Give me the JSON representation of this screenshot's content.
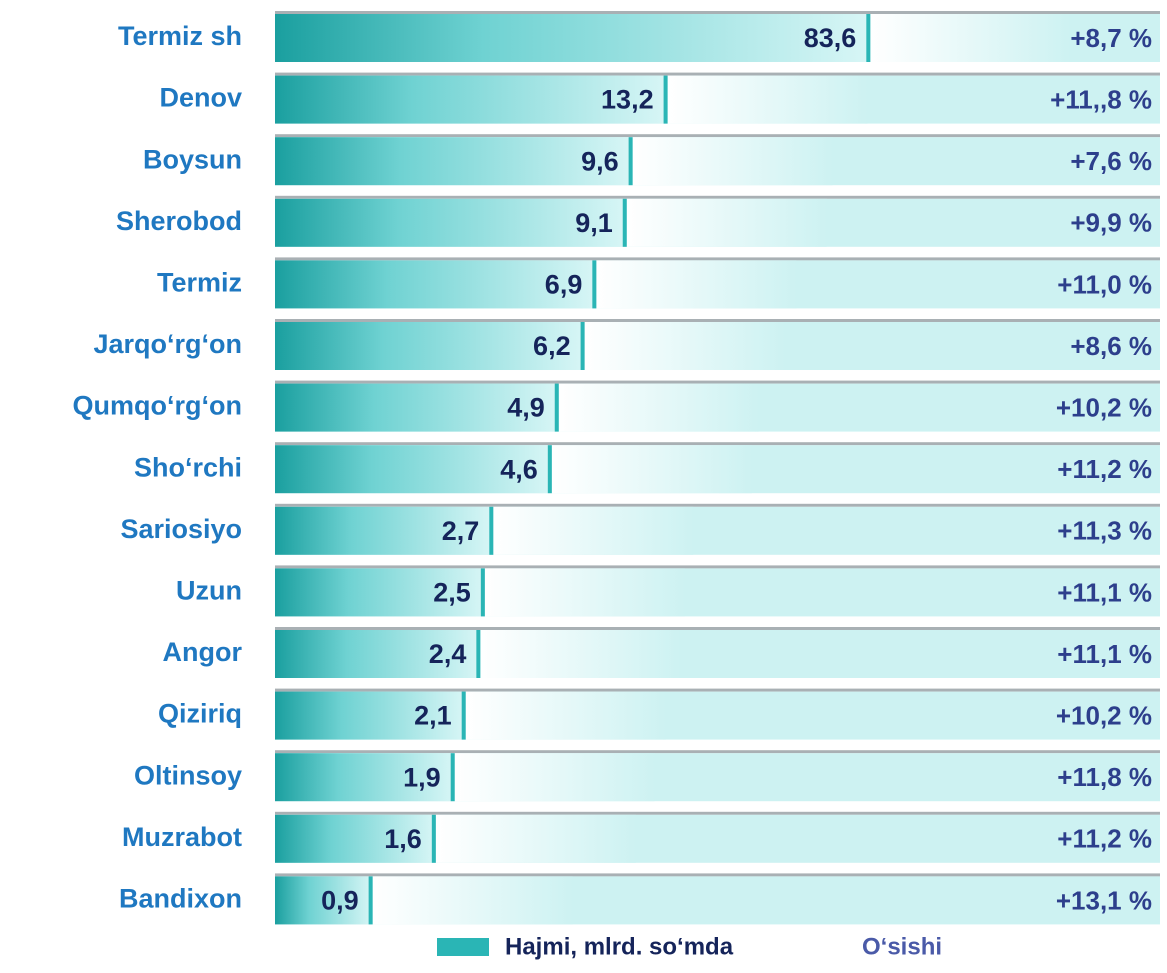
{
  "chart_data": {
    "type": "bar",
    "orientation": "horizontal",
    "log_scale": true,
    "xlim": [
      0.37,
      100
    ],
    "categories": [
      "Termiz sh",
      "Denov",
      "Boysun",
      "Sherobod",
      "Termiz",
      "Jarqo‘rg‘on",
      "Qumqo‘rg‘on",
      "Sho‘rchi",
      "Sariosiyo",
      "Uzun",
      "Angor",
      "Qiziriq",
      "Oltinsoy",
      "Muzrabot",
      "Bandixon"
    ],
    "series": [
      {
        "name": "Hajmi, mlrd. so‘mda",
        "color": "#2ab5b5",
        "values": [
          83.6,
          13.2,
          9.6,
          9.1,
          6.9,
          6.2,
          4.9,
          4.6,
          2.7,
          2.5,
          2.4,
          2.1,
          1.9,
          1.6,
          0.9
        ],
        "value_labels": [
          "83,6",
          "13,2",
          "9,6",
          "9,1",
          "6,9",
          "6,2",
          "4,9",
          "4,6",
          "2,7",
          "2,5",
          "2,4",
          "2,1",
          "1,9",
          "1,6",
          "0,9"
        ]
      }
    ],
    "growth": {
      "name": "O‘sishi",
      "color": "#2d3f8c",
      "labels": [
        "+8,7 %",
        "+11,,8 %",
        "+7,6 %",
        "+9,9 %",
        "+11,0 %",
        "+8,6 %",
        "+10,2 %",
        "+11,2 %",
        "+11,3 %",
        "+11,1 %",
        "+11,1 %",
        "+10,2 %",
        "+11,8 %",
        "+11,2 %",
        "+13,1 %"
      ]
    }
  }
}
